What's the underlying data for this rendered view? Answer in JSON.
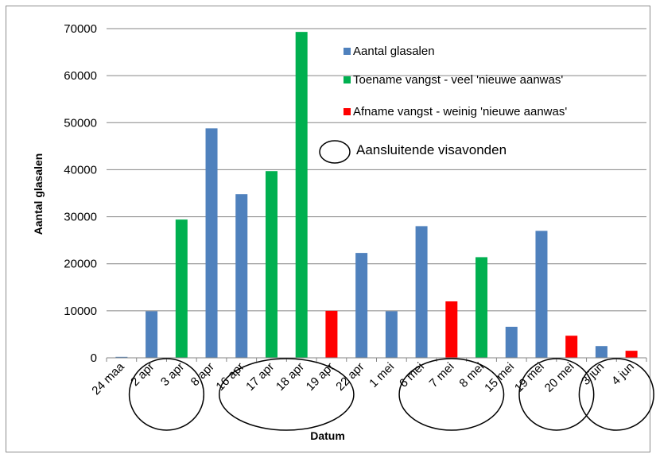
{
  "chart_data": {
    "type": "bar",
    "xlabel": "Datum",
    "ylabel": "Aantal glasalen",
    "ylim": [
      0,
      70000
    ],
    "yticks": [
      0,
      10000,
      20000,
      30000,
      40000,
      50000,
      60000,
      70000
    ],
    "grid": "horizontal",
    "legend_position": "top-right",
    "categories": [
      "24 maa",
      "2 apr",
      "3 apr",
      "8 apr",
      "16 apr",
      "17 apr",
      "18 apr",
      "19 apr",
      "22 apr",
      "1 mei",
      "6 mei",
      "7 mei",
      "8 mei",
      "15 mei",
      "19 mei",
      "20 mei",
      "3 jun",
      "4 jun"
    ],
    "values": [
      200,
      9900,
      29400,
      48800,
      34800,
      39700,
      69300,
      10000,
      22300,
      9900,
      28000,
      12000,
      21400,
      6600,
      27000,
      4700,
      2500,
      1500
    ],
    "bar_groups": [
      "aantal",
      "aantal",
      "toename",
      "aantal",
      "aantal",
      "toename",
      "toename",
      "afname",
      "aantal",
      "aantal",
      "aantal",
      "afname",
      "toename",
      "aantal",
      "aantal",
      "afname",
      "aantal",
      "afname"
    ],
    "series": [
      {
        "key": "aantal",
        "name": "Aantal glasalen",
        "color": "#4f81bd"
      },
      {
        "key": "toename",
        "name": "Toename vangst - veel 'nieuwe aanwas'",
        "color": "#00b050"
      },
      {
        "key": "afname",
        "name": "Afname vangst - weinig 'nieuwe aanwas'",
        "color": "#ff0000"
      }
    ],
    "ellipse_legend": "Aansluitende visavonden",
    "ellipse_groups": [
      [
        1,
        2
      ],
      [
        4,
        7
      ],
      [
        10,
        12
      ],
      [
        14,
        15
      ],
      [
        16,
        17
      ]
    ]
  }
}
